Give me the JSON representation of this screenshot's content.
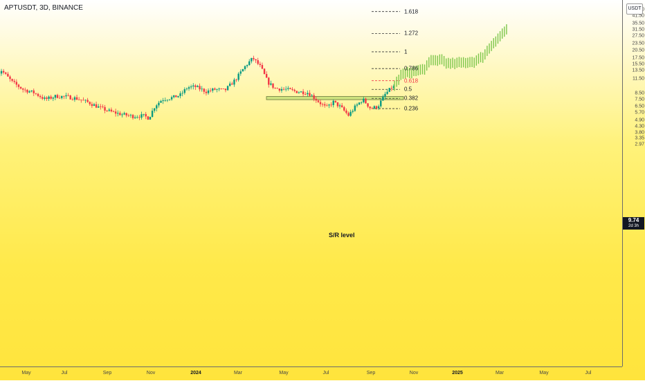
{
  "chart": {
    "symbol_label": "APTUSDT, 3D, BINANCE",
    "currency": "USDT",
    "current_price": "9.74",
    "countdown": "2d 3h",
    "sr_label": "S/R level",
    "colors": {
      "up": "#089981",
      "down": "#f23645",
      "projection": "#7cc64b",
      "fib_line": "#333333",
      "fib_highlight": "#f23645",
      "sr_zone": "#c8e07a"
    }
  },
  "price_axis": {
    "labels": [
      "47.50",
      "41.50",
      "35.50",
      "31.50",
      "27.50",
      "23.50",
      "20.50",
      "17.50",
      "15.50",
      "13.50",
      "11.50",
      "8.50",
      "7.50",
      "6.50",
      "5.70",
      "4.90",
      "4.30",
      "3.80",
      "3.35",
      "2.97"
    ]
  },
  "time_axis": {
    "labels": [
      {
        "text": "May",
        "year": false
      },
      {
        "text": "Jul",
        "year": false
      },
      {
        "text": "Sep",
        "year": false
      },
      {
        "text": "Nov",
        "year": false
      },
      {
        "text": "2024",
        "year": true
      },
      {
        "text": "Mar",
        "year": false
      },
      {
        "text": "May",
        "year": false
      },
      {
        "text": "Jul",
        "year": false
      },
      {
        "text": "Sep",
        "year": false
      },
      {
        "text": "Nov",
        "year": false
      },
      {
        "text": "2025",
        "year": true
      },
      {
        "text": "Mar",
        "year": false
      },
      {
        "text": "May",
        "year": false
      },
      {
        "text": "Jul",
        "year": false
      }
    ]
  },
  "fib_levels": [
    {
      "label": "1.618",
      "highlight": false
    },
    {
      "label": "1.272",
      "highlight": false
    },
    {
      "label": "1",
      "highlight": false
    },
    {
      "label": "0.786",
      "highlight": false
    },
    {
      "label": "0.618",
      "highlight": true
    },
    {
      "label": "0.5",
      "highlight": false
    },
    {
      "label": "0.382",
      "highlight": false
    },
    {
      "label": "0.236",
      "highlight": false
    }
  ],
  "chart_data": {
    "type": "candlestick",
    "symbol": "APTUSDT",
    "interval": "3D",
    "exchange": "BINANCE",
    "y_scale": "log",
    "ylim": [
      2.97,
      50.5
    ],
    "price_path": [
      [
        "2023-04-01",
        12.0
      ],
      [
        "2023-04-10",
        13.6
      ],
      [
        "2023-04-25",
        10.7
      ],
      [
        "2023-05-10",
        9.2
      ],
      [
        "2023-05-25",
        8.6
      ],
      [
        "2023-06-10",
        7.5
      ],
      [
        "2023-06-25",
        8.0
      ],
      [
        "2023-07-10",
        7.9
      ],
      [
        "2023-07-25",
        7.6
      ],
      [
        "2023-08-10",
        7.0
      ],
      [
        "2023-08-25",
        6.3
      ],
      [
        "2023-09-10",
        5.8
      ],
      [
        "2023-09-25",
        5.5
      ],
      [
        "2023-10-10",
        5.3
      ],
      [
        "2023-10-25",
        5.35
      ],
      [
        "2023-11-01",
        5.1
      ],
      [
        "2023-11-10",
        6.6
      ],
      [
        "2023-11-20",
        7.5
      ],
      [
        "2023-12-05",
        7.8
      ],
      [
        "2023-12-15",
        8.2
      ],
      [
        "2023-12-25",
        9.6
      ],
      [
        "2024-01-05",
        9.7
      ],
      [
        "2024-01-20",
        8.8
      ],
      [
        "2024-02-01",
        9.2
      ],
      [
        "2024-02-15",
        9.0
      ],
      [
        "2024-03-01",
        11.3
      ],
      [
        "2024-03-15",
        15.0
      ],
      [
        "2024-03-25",
        17.5
      ],
      [
        "2024-04-05",
        14.5
      ],
      [
        "2024-04-15",
        10.6
      ],
      [
        "2024-04-25",
        9.4
      ],
      [
        "2024-05-10",
        9.2
      ],
      [
        "2024-05-25",
        8.8
      ],
      [
        "2024-06-10",
        8.6
      ],
      [
        "2024-06-25",
        7.1
      ],
      [
        "2024-07-05",
        6.3
      ],
      [
        "2024-07-15",
        7.1
      ],
      [
        "2024-07-25",
        6.4
      ],
      [
        "2024-08-05",
        5.4
      ],
      [
        "2024-08-15",
        6.5
      ],
      [
        "2024-08-25",
        7.5
      ],
      [
        "2024-09-05",
        6.2
      ],
      [
        "2024-09-15",
        6.5
      ],
      [
        "2024-09-25",
        8.3
      ],
      [
        "2024-10-05",
        9.7
      ]
    ],
    "projection_path": [
      [
        "2024-10-05",
        9.9
      ],
      [
        "2024-10-15",
        12.5
      ],
      [
        "2024-10-30",
        13.2
      ],
      [
        "2024-11-15",
        13.9
      ],
      [
        "2024-11-25",
        16.5
      ],
      [
        "2024-12-10",
        17.0
      ],
      [
        "2024-12-20",
        15.4
      ],
      [
        "2025-01-10",
        16.0
      ],
      [
        "2025-01-25",
        16.3
      ],
      [
        "2025-02-05",
        18.0
      ],
      [
        "2025-02-20",
        24.0
      ],
      [
        "2025-03-10",
        31.5
      ]
    ],
    "fibonacci": {
      "levels": [
        1.618,
        1.272,
        1,
        0.786,
        0.618,
        0.5,
        0.382,
        0.236
      ],
      "prices": [
        45.5,
        29.0,
        19.9,
        14.1,
        11.0,
        9.2,
        7.65,
        6.2
      ]
    },
    "sr_zone": [
      7.45,
      7.95
    ]
  }
}
